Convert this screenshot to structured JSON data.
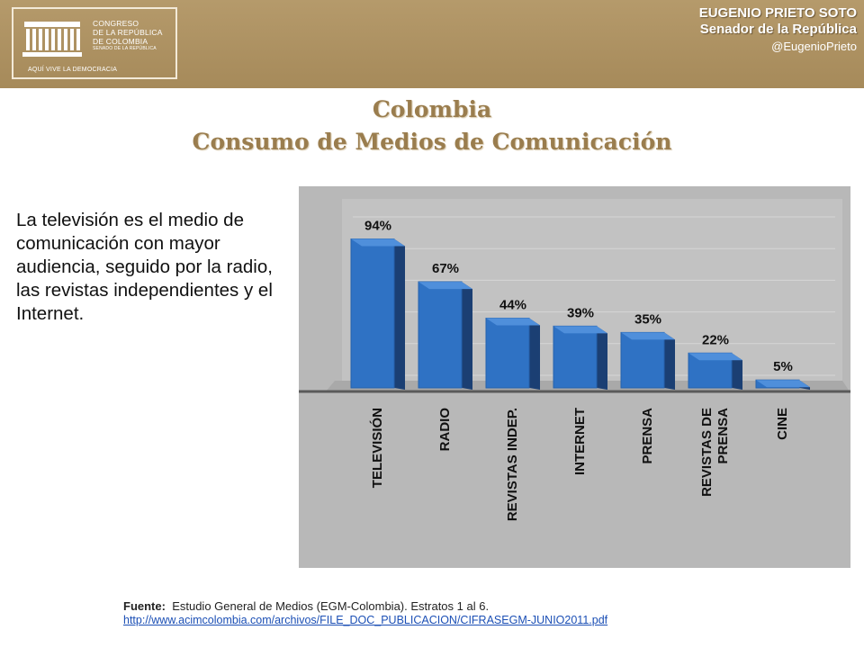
{
  "header": {
    "logo_lines": [
      "CONGRESO",
      "DE LA REPÚBLICA",
      "DE COLOMBIA",
      "SENADO DE LA REPÚBLICA"
    ],
    "logo_motto": "AQUÍ VIVE LA DEMOCRACIA",
    "senator_name": "EUGENIO PRIETO SOTO",
    "senator_role": "Senador de la República",
    "handle": "@EugenioPrieto"
  },
  "title_line1": "Colombia",
  "title_line2": "Consumo de Medios de Comunicación",
  "paragraph": "La televisión es el medio de comunicación con mayor audiencia, seguido por la radio, las revistas independientes y el Internet.",
  "source": {
    "label": "Fuente:",
    "text": "Estudio General de Medios (EGM-Colombia). Estratos 1 al 6.",
    "url": "http://www.acimcolombia.com/archivos/FILE_DOC_PUBLICACION/CIFRASEGM-JUNIO2011.pdf"
  },
  "colors": {
    "banner": "#a68a5a",
    "bar": "#2f72c4",
    "title": "#9a7d4e"
  },
  "chart_data": {
    "type": "bar",
    "categories": [
      "TELEVISIÓN",
      "RADIO",
      "REVISTAS INDEP.",
      "INTERNET",
      "PRENSA",
      "REVISTAS DE PRENSA",
      "CINE"
    ],
    "category_lines": [
      [
        "TELEVISIÓN"
      ],
      [
        "RADIO"
      ],
      [
        "REVISTAS INDEP."
      ],
      [
        "INTERNET"
      ],
      [
        "PRENSA"
      ],
      [
        "REVISTAS DE",
        "PRENSA"
      ],
      [
        "CINE"
      ]
    ],
    "values": [
      94,
      67,
      44,
      39,
      35,
      22,
      5
    ],
    "value_labels": [
      "94%",
      "67%",
      "44%",
      "39%",
      "35%",
      "22%",
      "5%"
    ],
    "ylim": [
      0,
      100
    ],
    "grid": true,
    "style": "3d"
  }
}
